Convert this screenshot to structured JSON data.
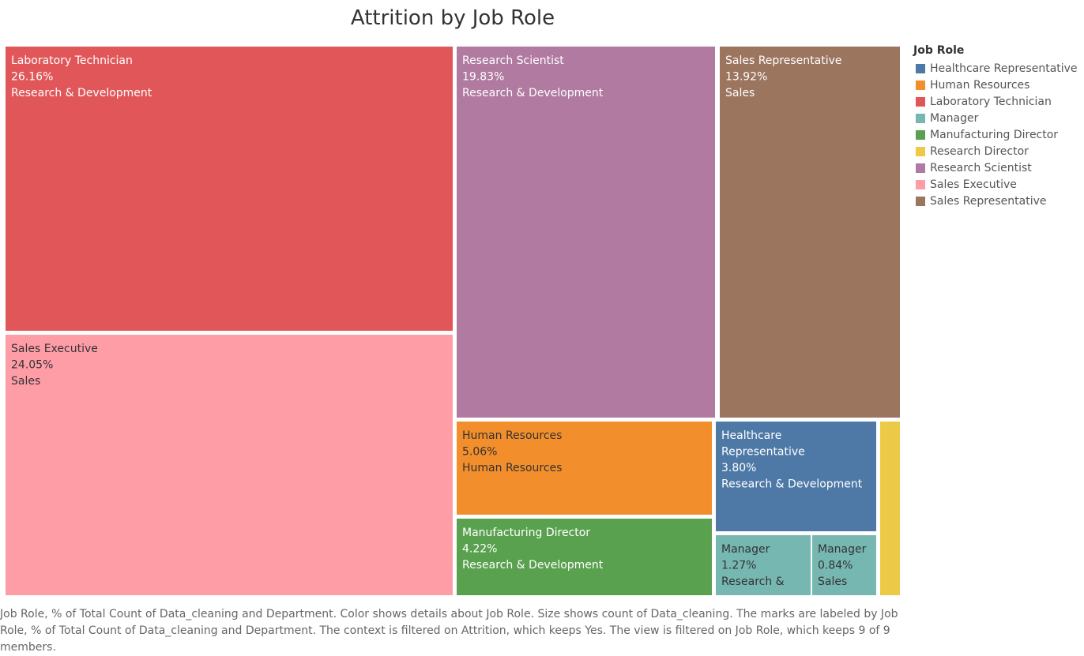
{
  "chart_data": {
    "type": "treemap",
    "title": "Attrition by Job Role",
    "tiles": [
      {
        "job_role": "Laboratory Technician",
        "value": 26.16,
        "label_pct": "26.16%",
        "department": "Research & Development",
        "color": "#E15759",
        "text_color": "#ffffff"
      },
      {
        "job_role": "Sales Executive",
        "value": 24.05,
        "label_pct": "24.05%",
        "department": "Sales",
        "color": "#FF9DA7",
        "text_color": "#333333"
      },
      {
        "job_role": "Research Scientist",
        "value": 19.83,
        "label_pct": "19.83%",
        "department": "Research & Development",
        "color": "#B07AA1",
        "text_color": "#ffffff"
      },
      {
        "job_role": "Sales Representative",
        "value": 13.92,
        "label_pct": "13.92%",
        "department": "Sales",
        "color": "#9C755F",
        "text_color": "#ffffff"
      },
      {
        "job_role": "Human Resources",
        "value": 5.06,
        "label_pct": "5.06%",
        "department": "Human Resources",
        "color": "#F28E2B",
        "text_color": "#333333"
      },
      {
        "job_role": "Manufacturing Director",
        "value": 4.22,
        "label_pct": "4.22%",
        "department": "Research & Development",
        "color": "#59A14F",
        "text_color": "#ffffff"
      },
      {
        "job_role": "Healthcare Representative",
        "value": 3.8,
        "label_pct": "3.80%",
        "department": "Research & Development",
        "color": "#4E79A7",
        "text_color": "#ffffff"
      },
      {
        "job_role": "Manager",
        "value": 1.27,
        "label_pct": "1.27%",
        "department": "Research & Development",
        "color": "#76B7B2",
        "text_color": "#333333"
      },
      {
        "job_role": "Manager",
        "value": 0.84,
        "label_pct": "0.84%",
        "department": "Sales",
        "color": "#76B7B2",
        "text_color": "#333333"
      },
      {
        "job_role": "Research Director",
        "value": null,
        "label_pct": "",
        "department": "",
        "color": "#EDC948",
        "text_color": "#333333"
      }
    ],
    "legend": {
      "title": "Job Role",
      "position": "right",
      "items": [
        {
          "label": "Healthcare Representative",
          "color": "#4E79A7"
        },
        {
          "label": "Human Resources",
          "color": "#F28E2B"
        },
        {
          "label": "Laboratory Technician",
          "color": "#E15759"
        },
        {
          "label": "Manager",
          "color": "#76B7B2"
        },
        {
          "label": "Manufacturing Director",
          "color": "#59A14F"
        },
        {
          "label": "Research Director",
          "color": "#EDC948"
        },
        {
          "label": "Research Scientist",
          "color": "#B07AA1"
        },
        {
          "label": "Sales Executive",
          "color": "#FF9DA7"
        },
        {
          "label": "Sales Representative",
          "color": "#9C755F"
        }
      ]
    },
    "caption": "Job Role, % of Total Count of Data_cleaning and Department.  Color shows details about Job Role.  Size shows count of Data_cleaning.  The marks are labeled by Job Role, % of Total Count of Data_cleaning and Department. The context is filtered on Attrition, which keeps Yes. The view is filtered on Job Role, which keeps 9 of 9 members."
  }
}
